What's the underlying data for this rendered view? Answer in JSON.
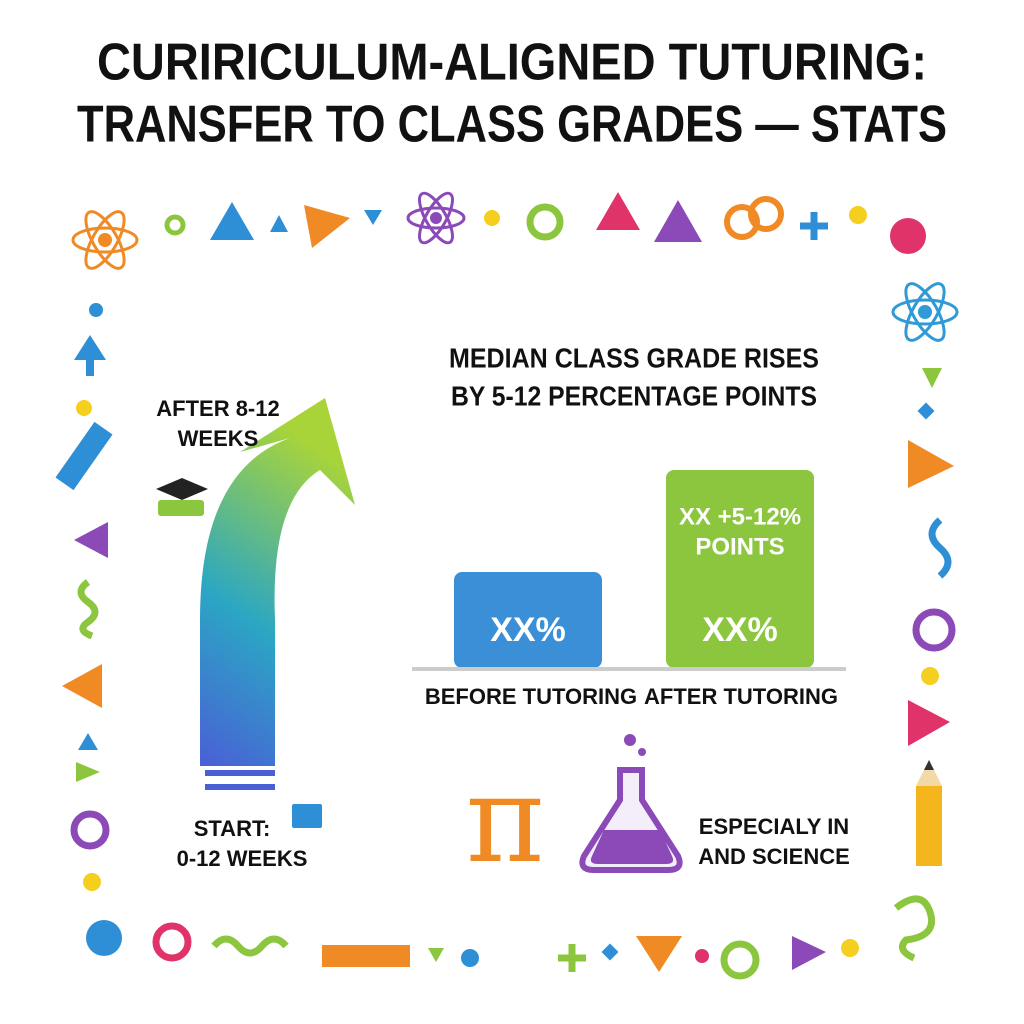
{
  "header": {
    "title_lines": [
      "CURIRICULUM-ALIGNED TUTURING:",
      "TRANSFER TO CLASS GRADES — STATS"
    ]
  },
  "progress_arrow": {
    "end_label_lines": [
      "AFTER 8-12",
      "WEEKS"
    ],
    "start_label_lines": [
      "START:",
      "0-12 WEEKS"
    ]
  },
  "comparison": {
    "heading_lines": [
      "MEDIAN CLASS GRADE RISES",
      "BY 5-12 PERCENTAGE POINTS"
    ],
    "bars": [
      {
        "label": "BEFORE TUTORING",
        "value_text": "XX%"
      },
      {
        "label": "AFTER TUTORING",
        "value_text": "XX%",
        "gain_lines": [
          "XX +5-12%",
          "POINTS"
        ]
      }
    ]
  },
  "note": {
    "lines": [
      "ESPECIALY IN",
      "AND SCIENCE"
    ]
  }
}
